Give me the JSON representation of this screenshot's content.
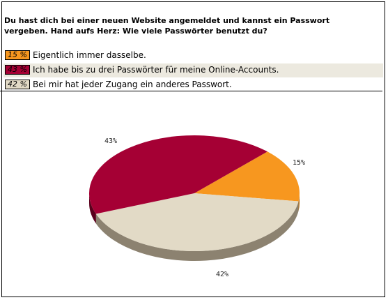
{
  "question": "Du hast dich bei einer neuen Website angemeldet und kannst ein Passwort vergeben. Hand aufs Herz: Wie viele Passwörter benutzt du?",
  "legend": [
    {
      "percent_label": "15 %",
      "text": "Eigentlich immer dasselbe.",
      "color": "#f7971f"
    },
    {
      "percent_label": "43 %",
      "text": "Ich habe bis zu drei Passwörter für meine Online-Accounts.",
      "color": "#a50034"
    },
    {
      "percent_label": "42 %",
      "text": "Bei mir hat jeder Zugang ein anderes Passwort.",
      "color": "#e2dac6"
    }
  ],
  "chart_data": {
    "type": "pie",
    "title": "Du hast dich bei einer neuen Website angemeldet und kannst ein Passwort vergeben. Hand aufs Herz: Wie viele Passwörter benutzt du?",
    "categories": [
      "Eigentlich immer dasselbe.",
      "Ich habe bis zu drei Passwörter für meine Online-Accounts.",
      "Bei mir hat jeder Zugang ein anderes Passwort."
    ],
    "values": [
      15,
      43,
      42
    ],
    "slice_labels": [
      "15%",
      "43%",
      "42%"
    ],
    "colors": [
      "#f7971f",
      "#a50034",
      "#e2dac6"
    ],
    "shadow_colors": [
      "#b06a10",
      "#5a001c",
      "#8c8270"
    ],
    "style": "3d-pie"
  }
}
